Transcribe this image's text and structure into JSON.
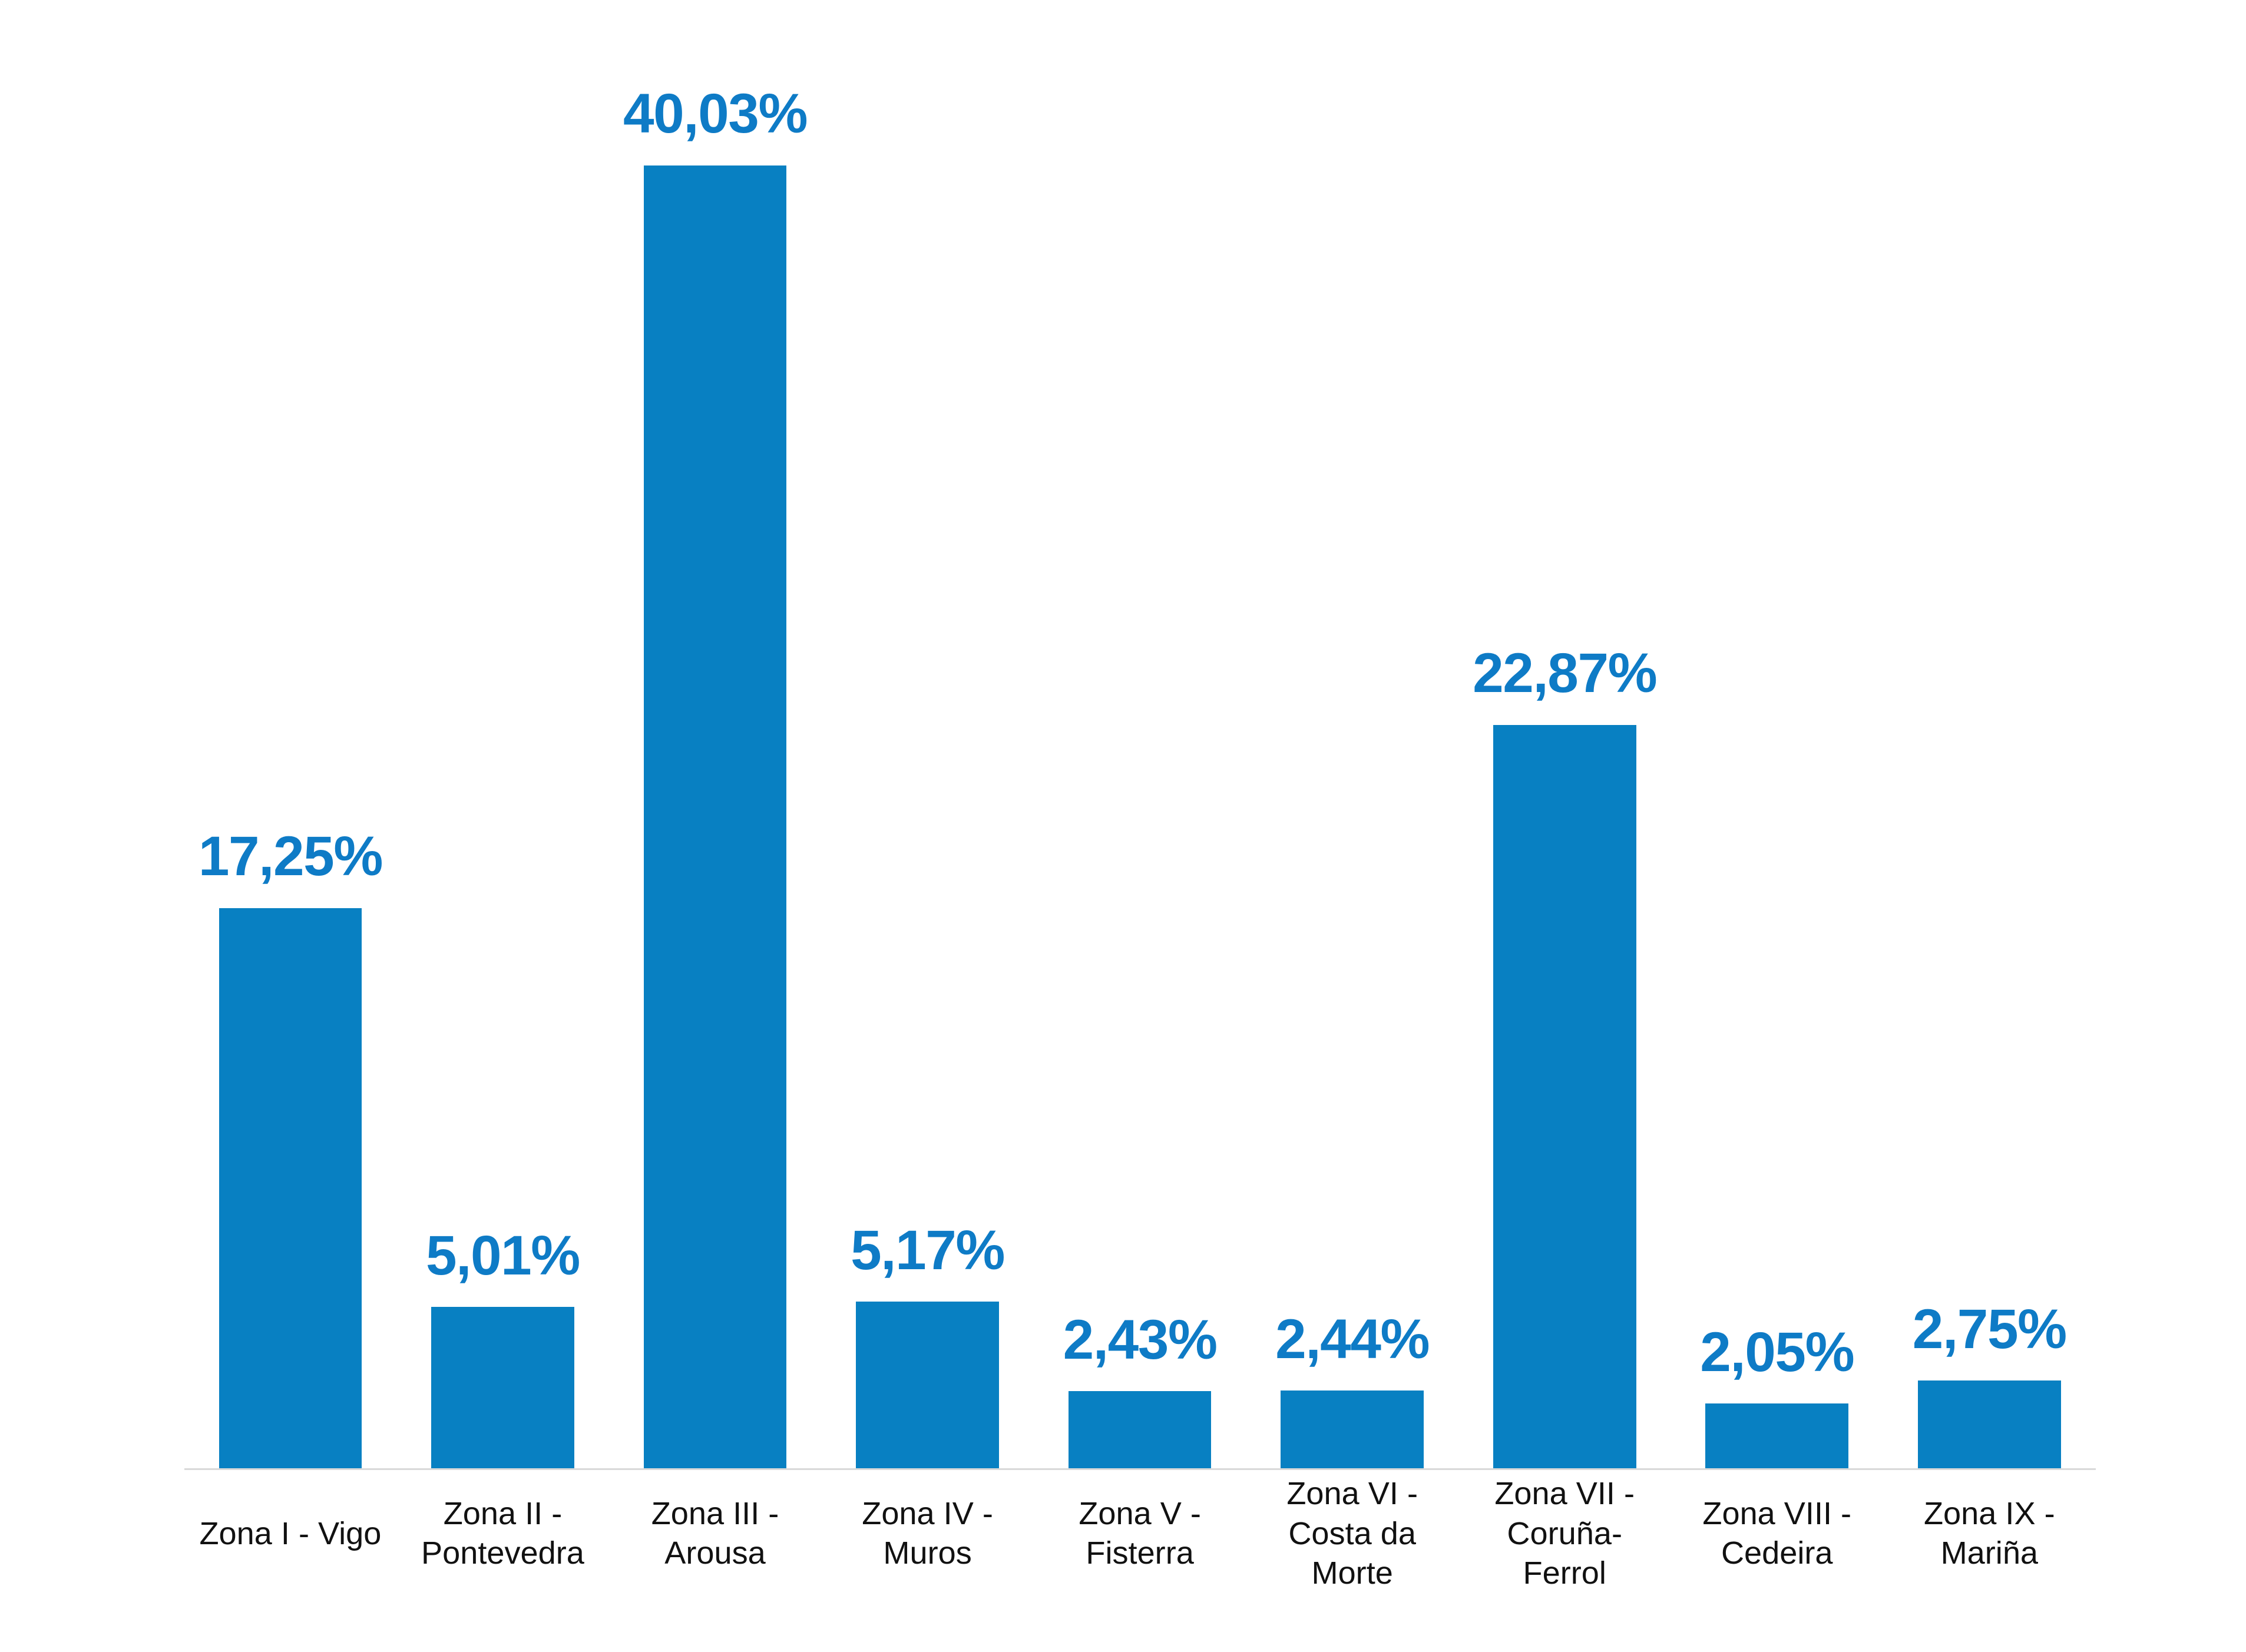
{
  "style": {
    "bar_color": "#0880C2",
    "value_color": "#0E7BC6",
    "axis_line_color": "#D9D9D9",
    "background_color": "#FFFFFF",
    "x_label_color": "#111111"
  },
  "chart_data": {
    "type": "bar",
    "categories": [
      "Zona I - Vigo",
      "Zona II -\nPontevedra",
      "Zona III -\nArousa",
      "Zona IV -\nMuros",
      "Zona V -\nFisterra",
      "Zona VI -\nCosta da\nMorte",
      "Zona VII -\nCoruña-\nFerrol",
      "Zona VIII -\nCedeira",
      "Zona IX -\nMariña"
    ],
    "values": [
      17.25,
      5.01,
      40.03,
      5.17,
      2.43,
      2.44,
      22.87,
      2.05,
      2.75
    ],
    "value_labels": [
      "17,25%",
      "5,01%",
      "40,03%",
      "5,17%",
      "2,43%",
      "2,44%",
      "22,87%",
      "2,05%",
      "2,75%"
    ],
    "unit": "%",
    "title": "",
    "xlabel": "",
    "ylabel": "",
    "ylim": [
      0,
      45.1
    ],
    "grid": false,
    "legend": "none",
    "y_axis_visible": false,
    "x_axis_line": true,
    "value_label_position": "above-bars"
  }
}
